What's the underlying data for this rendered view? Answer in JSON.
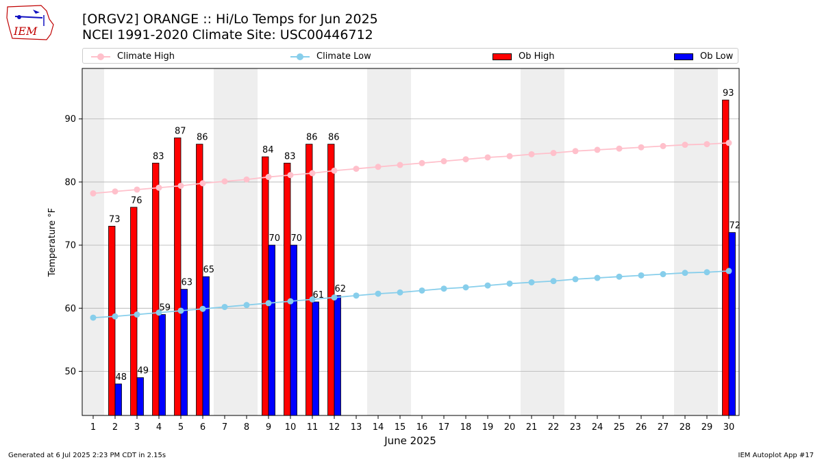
{
  "header": {
    "logo_text": "IEM",
    "title_line1": "[ORGV2] ORANGE :: Hi/Lo Temps for Jun 2025",
    "title_line2": "NCEI 1991-2020 Climate Site: USC00446712"
  },
  "legend": {
    "climate_high": "Climate High",
    "climate_low": "Climate Low",
    "ob_high": "Ob High",
    "ob_low": "Ob Low"
  },
  "colors": {
    "climate_high": "#ffc0cb",
    "climate_low": "#87ceeb",
    "ob_high": "#ff0000",
    "ob_low": "#0000ff",
    "weekend_shade": "#eeeeee",
    "grid": "#b0b0b0"
  },
  "footer": {
    "generated": "Generated at 6 Jul 2025 2:23 PM CDT in 2.15s",
    "app": "IEM Autoplot App #17"
  },
  "chart_data": {
    "type": "bar",
    "xlabel": "June 2025",
    "ylabel": "Temperature °F",
    "ylim": [
      43,
      98
    ],
    "yticks": [
      50,
      60,
      70,
      80,
      90
    ],
    "grid": "y",
    "legend_position": "top",
    "days": [
      1,
      2,
      3,
      4,
      5,
      6,
      7,
      8,
      9,
      10,
      11,
      12,
      13,
      14,
      15,
      16,
      17,
      18,
      19,
      20,
      21,
      22,
      23,
      24,
      25,
      26,
      27,
      28,
      29,
      30
    ],
    "weekend_days": [
      1,
      7,
      8,
      14,
      15,
      21,
      22,
      28,
      29
    ],
    "series": [
      {
        "name": "Ob High",
        "kind": "bar",
        "values": [
          null,
          73,
          76,
          83,
          87,
          86,
          null,
          null,
          84,
          83,
          86,
          86,
          null,
          null,
          null,
          null,
          null,
          null,
          null,
          null,
          null,
          null,
          null,
          null,
          null,
          null,
          null,
          null,
          null,
          93
        ]
      },
      {
        "name": "Ob Low",
        "kind": "bar",
        "values": [
          null,
          48,
          49,
          59,
          63,
          65,
          null,
          null,
          70,
          70,
          61,
          62,
          null,
          null,
          null,
          null,
          null,
          null,
          null,
          null,
          null,
          null,
          null,
          null,
          null,
          null,
          null,
          null,
          null,
          72
        ]
      },
      {
        "name": "Climate High",
        "kind": "line",
        "values": [
          78.2,
          78.5,
          78.8,
          79.1,
          79.4,
          79.8,
          80.1,
          80.4,
          80.8,
          81.1,
          81.4,
          81.8,
          82.1,
          82.4,
          82.7,
          83.0,
          83.3,
          83.6,
          83.9,
          84.1,
          84.4,
          84.6,
          84.9,
          85.1,
          85.3,
          85.5,
          85.7,
          85.9,
          86.0,
          86.2
        ]
      },
      {
        "name": "Climate Low",
        "kind": "line",
        "values": [
          58.5,
          58.7,
          59.0,
          59.3,
          59.6,
          59.9,
          60.2,
          60.5,
          60.8,
          61.1,
          61.4,
          61.7,
          62.0,
          62.3,
          62.5,
          62.8,
          63.1,
          63.3,
          63.6,
          63.9,
          64.1,
          64.3,
          64.6,
          64.8,
          65.0,
          65.2,
          65.4,
          65.6,
          65.7,
          65.9
        ]
      }
    ]
  }
}
